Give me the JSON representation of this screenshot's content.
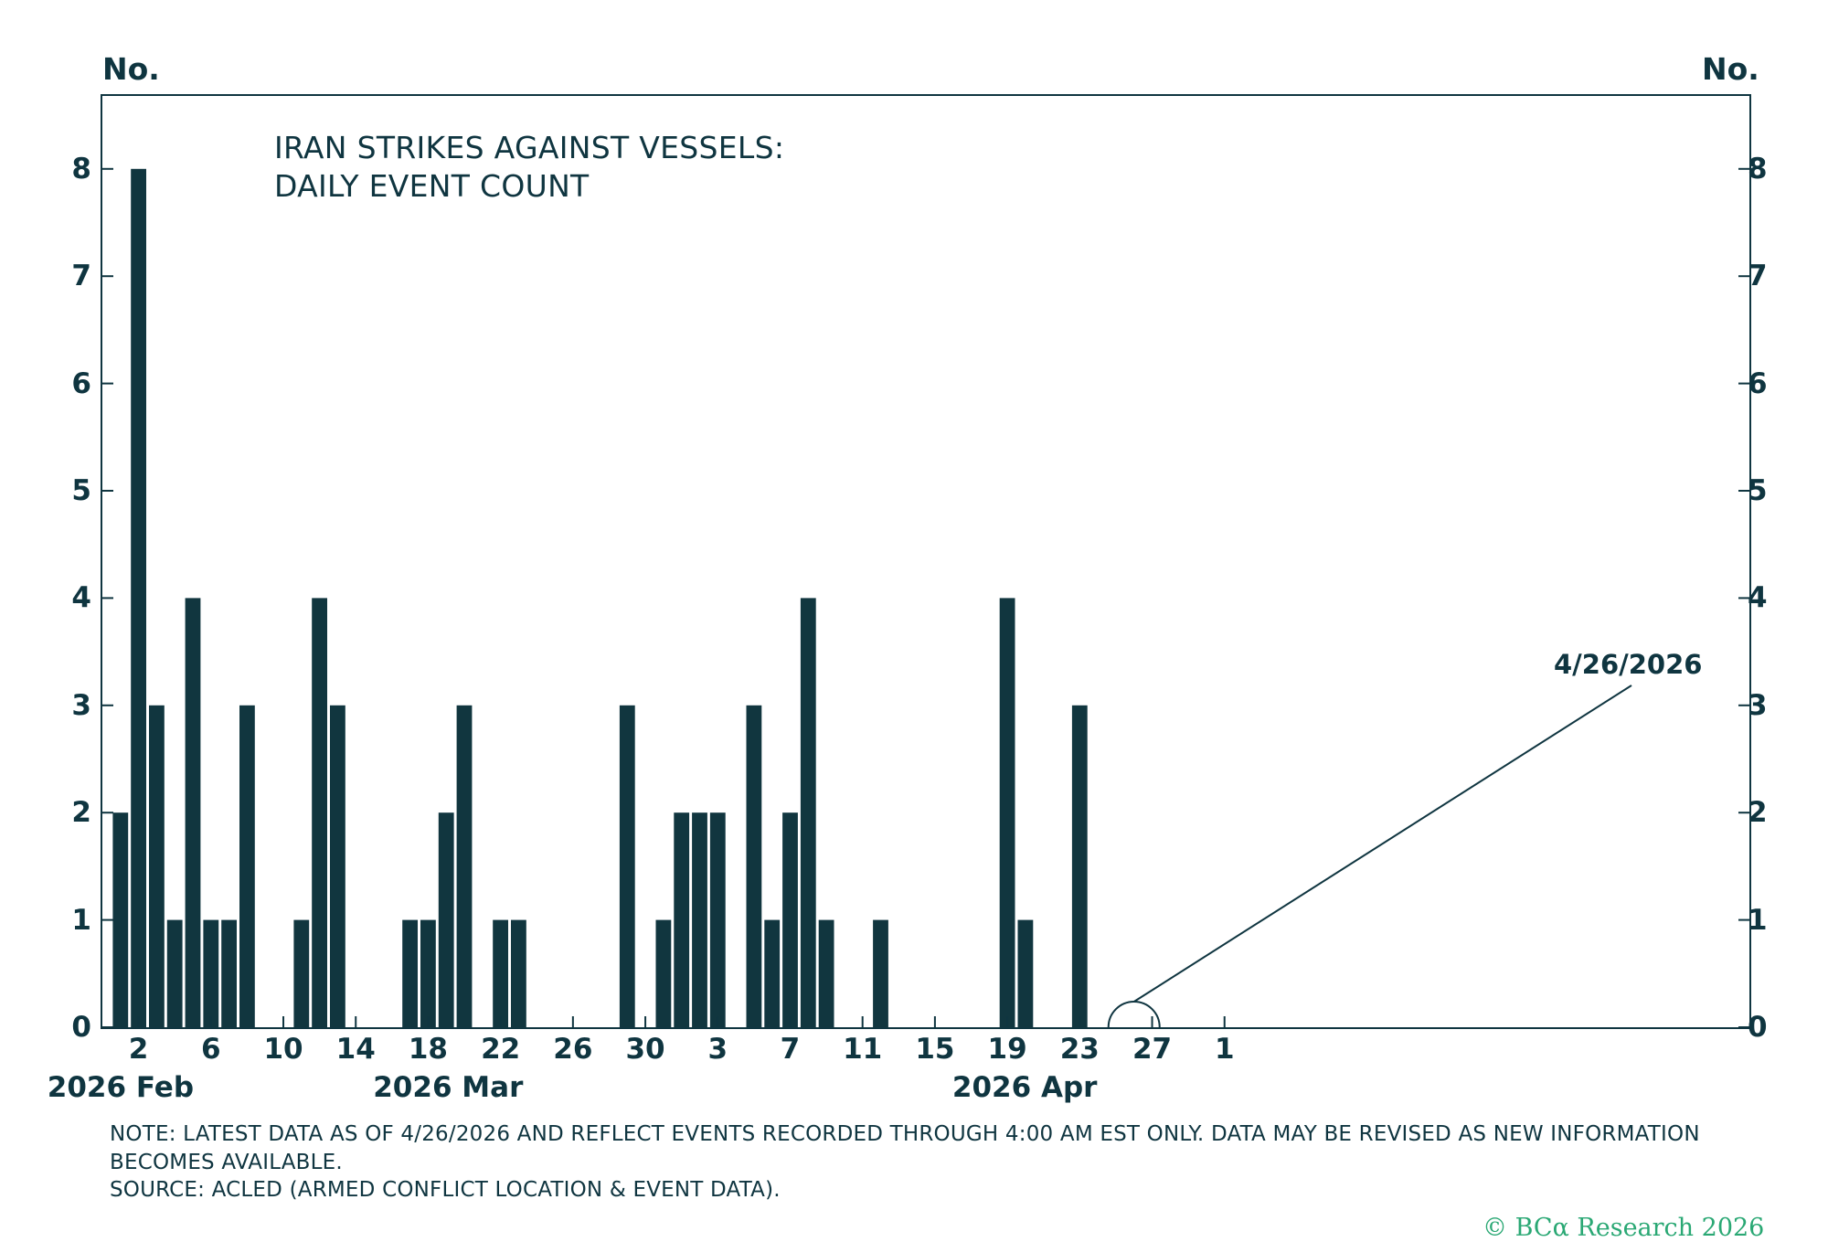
{
  "chart_data": {
    "type": "bar",
    "title_lines": [
      "IRAN STRIKES AGAINST VESSELS:",
      "DAILY EVENT COUNT"
    ],
    "y_unit_left": "No.",
    "y_unit_right": "No.",
    "ylim": [
      0,
      8.7
    ],
    "yticks": [
      "0",
      "1",
      "2",
      "3",
      "4",
      "5",
      "6",
      "7",
      "8"
    ],
    "xlim": [
      "2026-01-31",
      "2026-05-02"
    ],
    "xticks": [
      {
        "date": "2026-02-02",
        "label": "2"
      },
      {
        "date": "2026-02-06",
        "label": "6"
      },
      {
        "date": "2026-02-10",
        "label": "10"
      },
      {
        "date": "2026-02-14",
        "label": "14"
      },
      {
        "date": "2026-02-18",
        "label": "18"
      },
      {
        "date": "2026-02-22",
        "label": "22"
      },
      {
        "date": "2026-02-26",
        "label": "26"
      },
      {
        "date": "2026-03-02",
        "label": "30"
      },
      {
        "date": "2026-03-06",
        "label": "3"
      },
      {
        "date": "2026-03-10",
        "label": "7"
      },
      {
        "date": "2026-03-14",
        "label": "11"
      },
      {
        "date": "2026-03-18",
        "label": "15"
      },
      {
        "date": "2026-03-22",
        "label": "19"
      },
      {
        "date": "2026-03-26",
        "label": "23"
      },
      {
        "date": "2026-03-30",
        "label": "27"
      },
      {
        "date": "2026-04-03",
        "label": "1"
      }
    ],
    "month_labels": [
      {
        "date": "2026-02-01",
        "label": "2026 Feb"
      },
      {
        "date": "2026-02-19",
        "label": "2026 Mar"
      },
      {
        "date": "2026-03-23",
        "label": "2026 Apr"
      }
    ],
    "bars": [
      {
        "date": "2026-02-01",
        "value": 2
      },
      {
        "date": "2026-02-02",
        "value": 8
      },
      {
        "date": "2026-02-03",
        "value": 3
      },
      {
        "date": "2026-02-04",
        "value": 1
      },
      {
        "date": "2026-02-05",
        "value": 4
      },
      {
        "date": "2026-02-06",
        "value": 1
      },
      {
        "date": "2026-02-07",
        "value": 1
      },
      {
        "date": "2026-02-08",
        "value": 3
      },
      {
        "date": "2026-02-11",
        "value": 1
      },
      {
        "date": "2026-02-12",
        "value": 4
      },
      {
        "date": "2026-02-13",
        "value": 3
      },
      {
        "date": "2026-02-17",
        "value": 1
      },
      {
        "date": "2026-02-18",
        "value": 1
      },
      {
        "date": "2026-02-19",
        "value": 2
      },
      {
        "date": "2026-02-20",
        "value": 3
      },
      {
        "date": "2026-02-22",
        "value": 1
      },
      {
        "date": "2026-02-23",
        "value": 1
      },
      {
        "date": "2026-03-01",
        "value": 3
      },
      {
        "date": "2026-03-03",
        "value": 1
      },
      {
        "date": "2026-03-04",
        "value": 2
      },
      {
        "date": "2026-03-05",
        "value": 2
      },
      {
        "date": "2026-03-06",
        "value": 2
      },
      {
        "date": "2026-03-08",
        "value": 3
      },
      {
        "date": "2026-03-09",
        "value": 1
      },
      {
        "date": "2026-03-10",
        "value": 2
      },
      {
        "date": "2026-03-11",
        "value": 4
      },
      {
        "date": "2026-03-12",
        "value": 1
      },
      {
        "date": "2026-03-15",
        "value": 1
      },
      {
        "date": "2026-03-22",
        "value": 4
      },
      {
        "date": "2026-03-23",
        "value": 1
      },
      {
        "date": "2026-03-26",
        "value": 3
      }
    ],
    "annotation": {
      "label": "4/26/2026",
      "date": "2026-03-29",
      "value": 0
    },
    "grid": false,
    "legend": "none",
    "colors": {
      "bar": "#11363f",
      "axis": "#0f3540",
      "text": "#0f3540"
    }
  },
  "notes": {
    "line1": "NOTE: LATEST DATA AS OF 4/26/2026 AND REFLECT EVENTS RECORDED THROUGH 4:00 AM EST ONLY. DATA MAY BE REVISED AS NEW INFORMATION",
    "line2": "BECOMES AVAILABLE.",
    "source": "SOURCE: ACLED (ARMED CONFLICT LOCATION & EVENT DATA)."
  },
  "branding": {
    "copyright": "© BCα Research 2026",
    "color": "#2aa874"
  }
}
